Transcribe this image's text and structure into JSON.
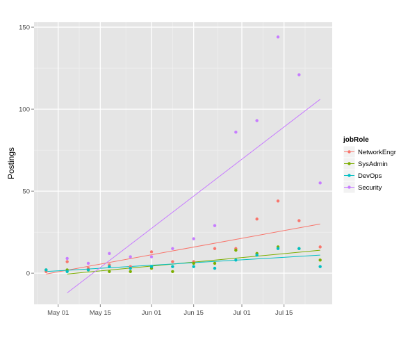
{
  "chart_data": {
    "type": "scatter",
    "title": "",
    "xlabel": "",
    "ylabel": "Postings",
    "x_ticks": [
      "May 01",
      "May 15",
      "Jun 01",
      "Jun 15",
      "Jul 01",
      "Jul 15"
    ],
    "x_tick_dates": [
      "2014-05-01",
      "2014-05-15",
      "2014-06-01",
      "2014-06-15",
      "2014-07-01",
      "2014-07-15"
    ],
    "xlim": [
      "2014-04-23",
      "2014-07-31"
    ],
    "y_ticks": [
      0,
      50,
      100,
      150
    ],
    "ylim": [
      -19,
      153
    ],
    "grid": true,
    "legend": {
      "title": "jobRole",
      "position": "right"
    },
    "series": [
      {
        "name": "NetworkEngr",
        "color": "#F8766D",
        "points": [
          {
            "x": "2014-04-27",
            "y": 1
          },
          {
            "x": "2014-05-04",
            "y": 7
          },
          {
            "x": "2014-05-11",
            "y": 3
          },
          {
            "x": "2014-05-18",
            "y": 5
          },
          {
            "x": "2014-05-25",
            "y": 4
          },
          {
            "x": "2014-06-01",
            "y": 13
          },
          {
            "x": "2014-06-08",
            "y": 7
          },
          {
            "x": "2014-06-15",
            "y": 7
          },
          {
            "x": "2014-06-22",
            "y": 15
          },
          {
            "x": "2014-06-29",
            "y": 15
          },
          {
            "x": "2014-07-06",
            "y": 33
          },
          {
            "x": "2014-07-13",
            "y": 44
          },
          {
            "x": "2014-07-20",
            "y": 32
          },
          {
            "x": "2014-07-27",
            "y": 16
          }
        ],
        "trend": [
          {
            "x": "2014-04-27",
            "y": -0.5
          },
          {
            "x": "2014-07-27",
            "y": 30
          }
        ]
      },
      {
        "name": "SysAdmin",
        "color": "#7CAE00",
        "points": [
          {
            "x": "2014-04-27",
            "y": 2
          },
          {
            "x": "2014-05-04",
            "y": 2
          },
          {
            "x": "2014-05-11",
            "y": 2
          },
          {
            "x": "2014-05-18",
            "y": 1
          },
          {
            "x": "2014-05-25",
            "y": 1
          },
          {
            "x": "2014-06-01",
            "y": 3
          },
          {
            "x": "2014-06-08",
            "y": 1
          },
          {
            "x": "2014-06-15",
            "y": 6
          },
          {
            "x": "2014-06-22",
            "y": 6
          },
          {
            "x": "2014-06-29",
            "y": 14
          },
          {
            "x": "2014-07-06",
            "y": 12
          },
          {
            "x": "2014-07-13",
            "y": 16
          },
          {
            "x": "2014-07-20",
            "y": 15
          },
          {
            "x": "2014-07-27",
            "y": 8
          }
        ],
        "trend": [
          {
            "x": "2014-05-04",
            "y": -0.5
          },
          {
            "x": "2014-07-27",
            "y": 14
          }
        ]
      },
      {
        "name": "DevOps",
        "color": "#00BFC4",
        "points": [
          {
            "x": "2014-04-27",
            "y": 2
          },
          {
            "x": "2014-05-04",
            "y": 1
          },
          {
            "x": "2014-05-11",
            "y": 2
          },
          {
            "x": "2014-05-18",
            "y": 4
          },
          {
            "x": "2014-05-25",
            "y": 3
          },
          {
            "x": "2014-06-01",
            "y": 4
          },
          {
            "x": "2014-06-08",
            "y": 4
          },
          {
            "x": "2014-06-15",
            "y": 4
          },
          {
            "x": "2014-06-22",
            "y": 3
          },
          {
            "x": "2014-06-29",
            "y": 8
          },
          {
            "x": "2014-07-06",
            "y": 11
          },
          {
            "x": "2014-07-13",
            "y": 15
          },
          {
            "x": "2014-07-20",
            "y": 15
          },
          {
            "x": "2014-07-27",
            "y": 4
          }
        ],
        "trend": [
          {
            "x": "2014-04-27",
            "y": 1
          },
          {
            "x": "2014-07-27",
            "y": 11
          }
        ]
      },
      {
        "name": "Security",
        "color": "#C77CFF",
        "points": [
          {
            "x": "2014-05-04",
            "y": 9
          },
          {
            "x": "2014-05-11",
            "y": 6
          },
          {
            "x": "2014-05-18",
            "y": 12
          },
          {
            "x": "2014-05-25",
            "y": 10
          },
          {
            "x": "2014-06-01",
            "y": 10
          },
          {
            "x": "2014-06-08",
            "y": 15
          },
          {
            "x": "2014-06-15",
            "y": 21
          },
          {
            "x": "2014-06-22",
            "y": 29
          },
          {
            "x": "2014-06-29",
            "y": 86
          },
          {
            "x": "2014-07-06",
            "y": 93
          },
          {
            "x": "2014-07-13",
            "y": 144
          },
          {
            "x": "2014-07-20",
            "y": 121
          },
          {
            "x": "2014-07-27",
            "y": 55
          }
        ],
        "trend": [
          {
            "x": "2014-05-04",
            "y": -12
          },
          {
            "x": "2014-07-27",
            "y": 106
          }
        ]
      }
    ]
  }
}
